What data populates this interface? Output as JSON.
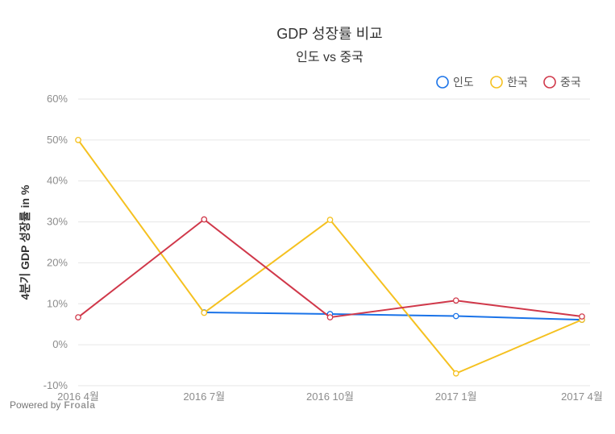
{
  "chart_data": {
    "type": "line",
    "title": "GDP 성장률 비교",
    "subtitle": "인도 vs 중국",
    "ylabel": "4분기 GDP 성장률 in %",
    "categories": [
      "2016 4월",
      "2016 7월",
      "2016 10월",
      "2017 1월",
      "2017 4월"
    ],
    "ylim": [
      -10,
      60
    ],
    "yticks": [
      60,
      50,
      40,
      30,
      20,
      10,
      0,
      -10
    ],
    "ytick_labels": [
      "60%",
      "50%",
      "40%",
      "30%",
      "20%",
      "10%",
      "0%",
      "-10%"
    ],
    "grid": true,
    "legend_position": "top-right",
    "series": [
      {
        "name": "인도",
        "color": "#1a73e8",
        "values": [
          null,
          7.9,
          7.5,
          7.0,
          6.1
        ]
      },
      {
        "name": "한국",
        "color": "#f5c120",
        "values": [
          50,
          7.8,
          30.5,
          -7,
          6.1
        ]
      },
      {
        "name": "중국",
        "color": "#d0384a",
        "values": [
          6.7,
          30.6,
          6.7,
          10.8,
          6.9
        ]
      }
    ]
  },
  "footer": {
    "powered_by": "Powered by",
    "brand": "Froala"
  }
}
